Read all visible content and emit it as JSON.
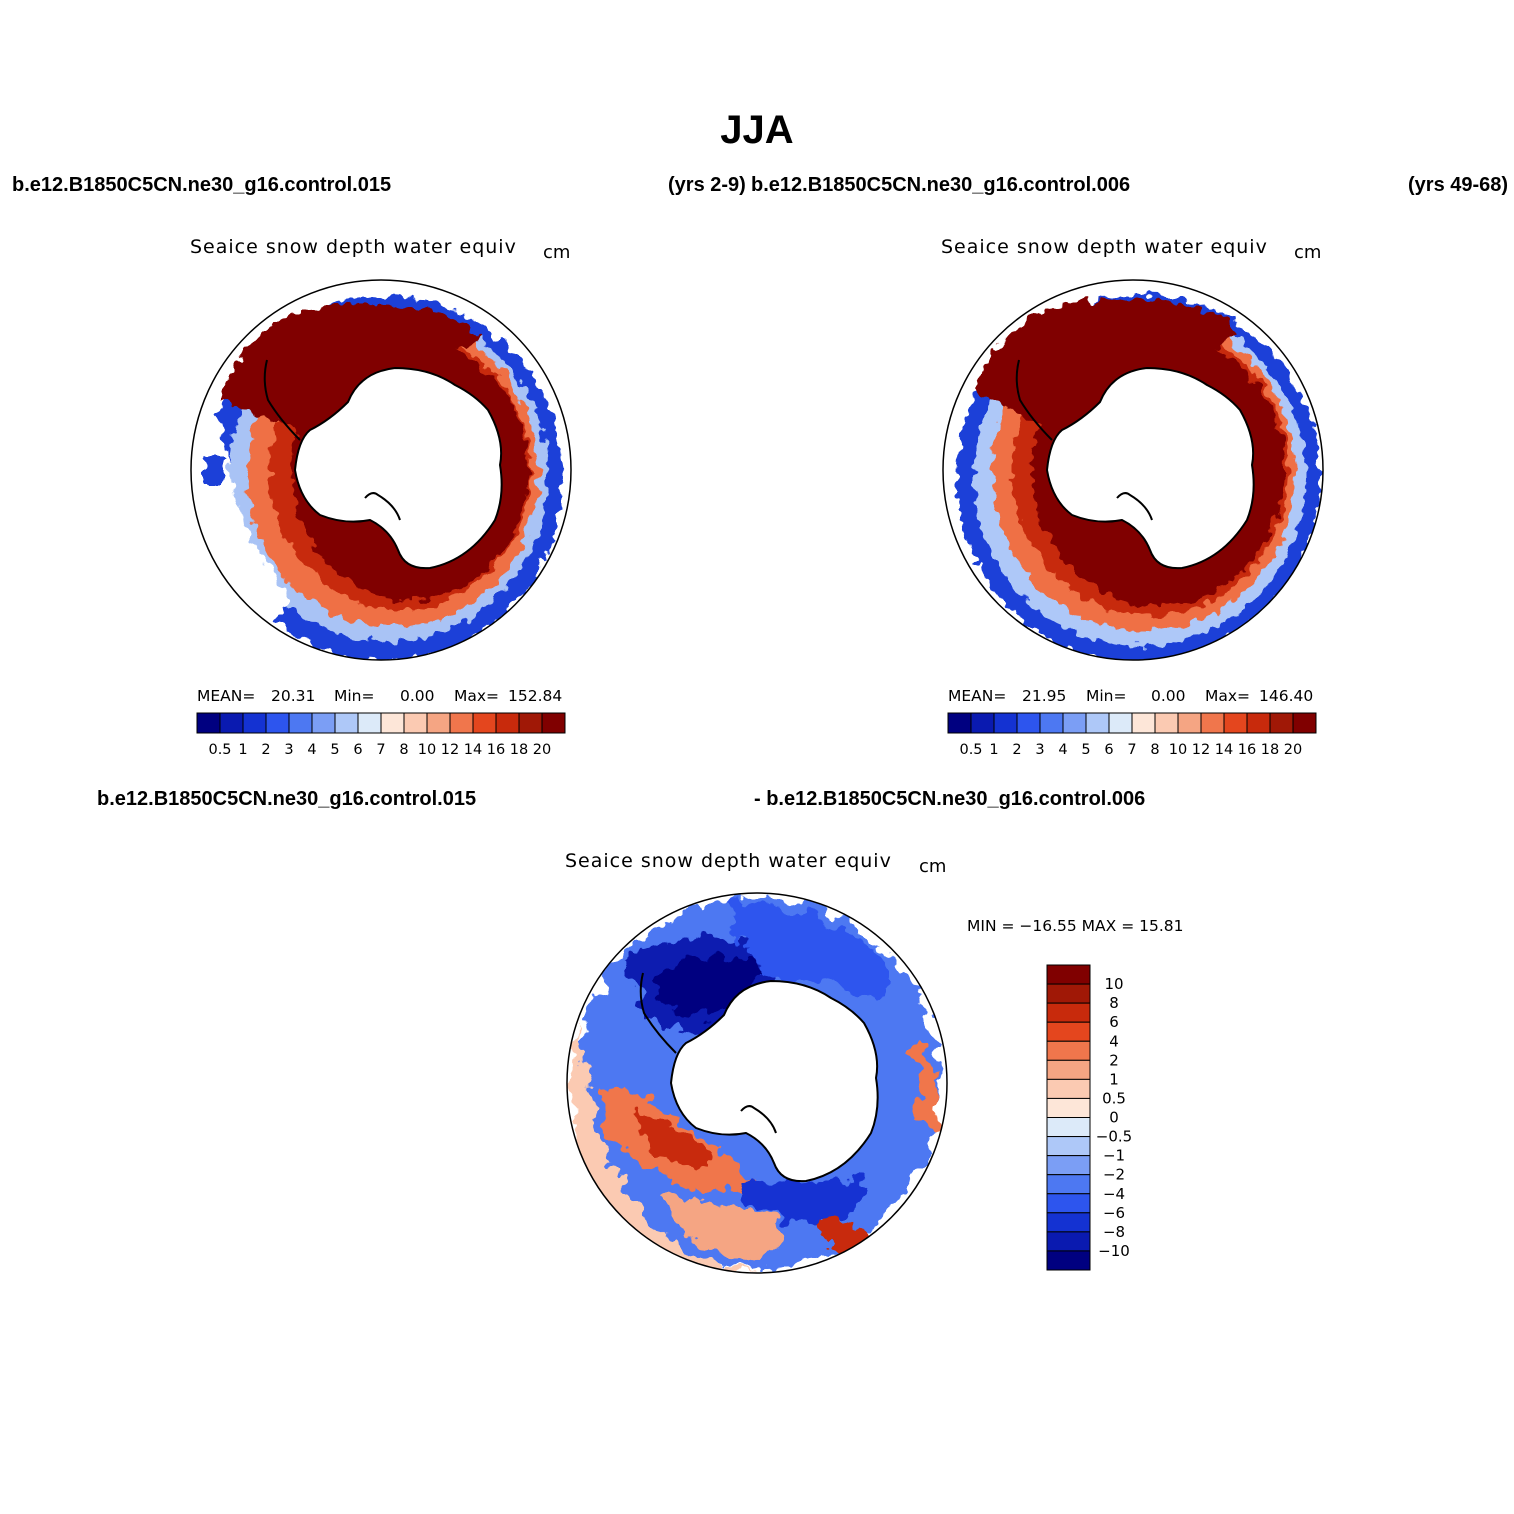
{
  "figure": {
    "title": "JJA",
    "case_a": "b.e12.B1850C5CN.ne30_g16.control.015",
    "years_a": "(yrs 2-9)",
    "case_b": "b.e12.B1850C5CN.ne30_g16.control.006",
    "years_b": "(yrs 49-68)",
    "diff_case_a": "b.e12.B1850C5CN.ne30_g16.control.015",
    "diff_case_b": "- b.e12.B1850C5CN.ne30_g16.control.006"
  },
  "panels": [
    {
      "variable": "Seaice snow depth water equiv",
      "units": "cm",
      "mean_label": "MEAN=",
      "mean_value": "20.31",
      "min_label": "Min=",
      "min_value": "0.00",
      "max_label": "Max=",
      "max_value": "152.84"
    },
    {
      "variable": "Seaice snow depth water equiv",
      "units": "cm",
      "mean_label": "MEAN=",
      "mean_value": "21.95",
      "min_label": "Min=",
      "min_value": "0.00",
      "max_label": "Max=",
      "max_value": "146.40"
    }
  ],
  "diff_panel": {
    "variable": "Seaice snow depth water equiv",
    "units": "cm",
    "minmax_label": "MIN = −16.55 MAX =   15.81"
  },
  "colorbar_levels": [
    "0.5",
    "1",
    "2",
    "3",
    "4",
    "5",
    "6",
    "7",
    "8",
    "10",
    "12",
    "14",
    "16",
    "18",
    "20"
  ],
  "colorbar_colors": [
    "#000080",
    "#0a1ab0",
    "#1432d2",
    "#2d55ee",
    "#4d78f2",
    "#7b9ef5",
    "#aec8f8",
    "#dceaf9",
    "#fde6d8",
    "#fbcab2",
    "#f5a583",
    "#f0764c",
    "#e4461e",
    "#c82a0c",
    "#a01806",
    "#800000"
  ],
  "diff_colorbar_levels": [
    "10",
    "8",
    "6",
    "4",
    "2",
    "1",
    "0.5",
    "0",
    "−0.5",
    "−1",
    "−2",
    "−4",
    "−6",
    "−8",
    "−10"
  ],
  "diff_colorbar_colors": [
    "#800000",
    "#a01806",
    "#c82a0c",
    "#e4461e",
    "#f0764c",
    "#f5a583",
    "#fbcab2",
    "#fde6d8",
    "#dceaf9",
    "#aec8f8",
    "#7b9ef5",
    "#4d78f2",
    "#2d55ee",
    "#1432d2",
    "#0a1ab0",
    "#000080"
  ]
}
